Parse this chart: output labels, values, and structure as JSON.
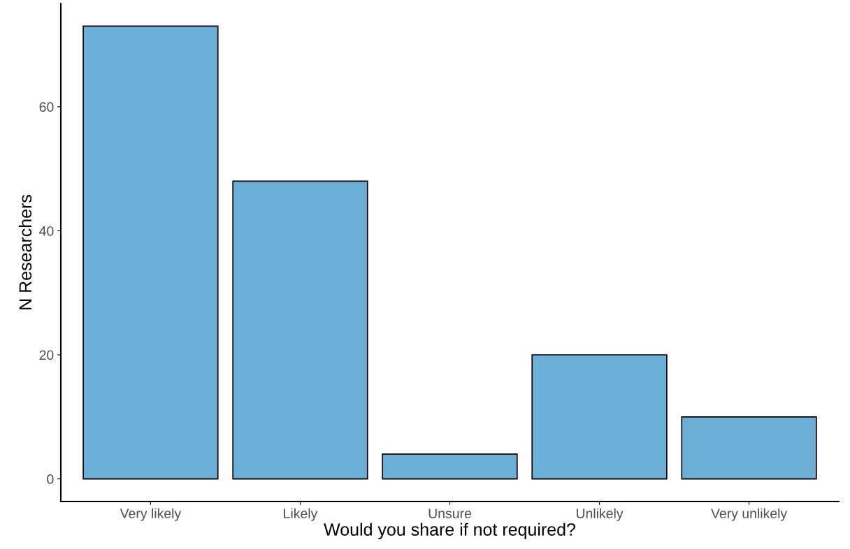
{
  "chart_data": {
    "type": "bar",
    "xlabel": "Would you share if not required?",
    "ylabel": "N Researchers",
    "categories": [
      "Very likely",
      "Likely",
      "Unsure",
      "Unlikely",
      "Very unlikely"
    ],
    "values": [
      73,
      48,
      4,
      20,
      10
    ],
    "color": "#6baed6",
    "ylim": [
      -3.65,
      76.65
    ],
    "yticks": [
      0,
      20,
      40,
      60
    ],
    "grid": false,
    "legend": false
  }
}
